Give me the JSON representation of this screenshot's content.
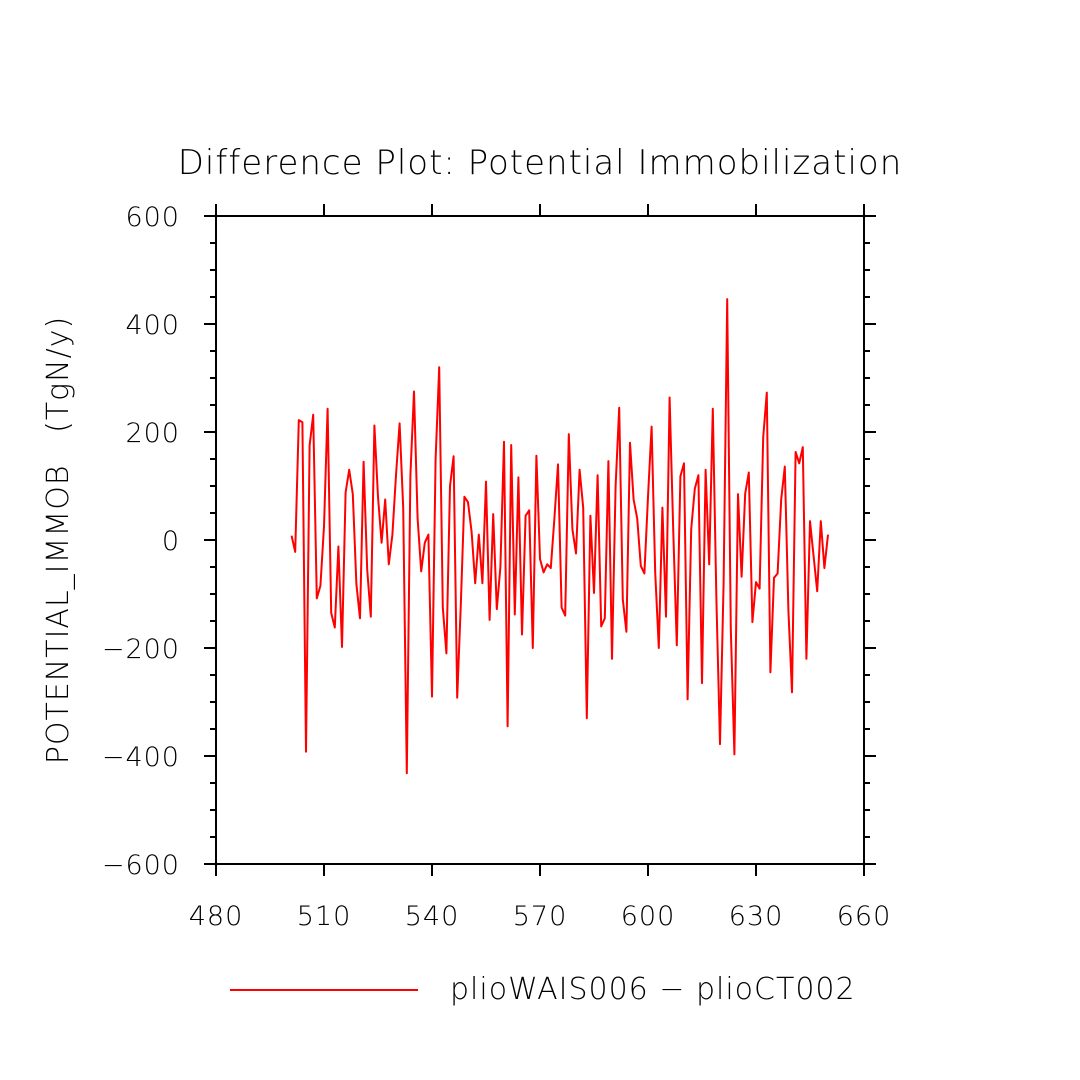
{
  "chart_data": {
    "type": "line",
    "title": "Difference Plot: Potential Immobilization",
    "xlabel": "",
    "ylabel": "POTENTIAL_IMMOB   (TgN/y)",
    "xlim": [
      480,
      660
    ],
    "ylim": [
      -600,
      600
    ],
    "x_ticks": [
      480,
      510,
      540,
      570,
      600,
      630,
      660
    ],
    "x_tick_labels": [
      "480",
      "510",
      "540",
      "570",
      "600",
      "630",
      "660"
    ],
    "y_ticks": [
      -600,
      -400,
      -200,
      0,
      200,
      400,
      600
    ],
    "y_tick_labels": [
      "−600",
      "−400",
      "−200",
      "0",
      "200",
      "400",
      "600"
    ],
    "grid": false,
    "legend_position": "bottom-center",
    "series": [
      {
        "name": "plioWAIS006 − plioCT002",
        "color": "#ff0000",
        "x": [
          501,
          502,
          503,
          504,
          505,
          506,
          507,
          508,
          509,
          510,
          511,
          512,
          513,
          514,
          515,
          516,
          517,
          518,
          519,
          520,
          521,
          522,
          523,
          524,
          525,
          526,
          527,
          528,
          529,
          530,
          531,
          532,
          533,
          534,
          535,
          536,
          537,
          538,
          539,
          540,
          541,
          542,
          543,
          544,
          545,
          546,
          547,
          548,
          549,
          550,
          551,
          552,
          553,
          554,
          555,
          556,
          557,
          558,
          559,
          560,
          561,
          562,
          563,
          564,
          565,
          566,
          567,
          568,
          569,
          570,
          571,
          572,
          573,
          574,
          575,
          576,
          577,
          578,
          579,
          580,
          581,
          582,
          583,
          584,
          585,
          586,
          587,
          588,
          589,
          590,
          591,
          592,
          593,
          594,
          595,
          596,
          597,
          598,
          599,
          600,
          601,
          602,
          603,
          604,
          605,
          606,
          607,
          608,
          609,
          610,
          611,
          612,
          613,
          614,
          615,
          616,
          617,
          618,
          619,
          620,
          621,
          622,
          623,
          624,
          625,
          626,
          627,
          628,
          629,
          630,
          631,
          632,
          633,
          634,
          635,
          636,
          637,
          638,
          639,
          640,
          641,
          642,
          643,
          644,
          645,
          646,
          647,
          648,
          649,
          650
        ],
        "values": [
          8,
          -22,
          222,
          218,
          -392,
          175,
          232,
          -108,
          -85,
          25,
          243,
          -135,
          -162,
          -12,
          -198,
          88,
          130,
          85,
          -82,
          -145,
          145,
          -55,
          -142,
          212,
          80,
          -5,
          75,
          -45,
          10,
          120,
          216,
          60,
          -432,
          120,
          275,
          40,
          -58,
          -5,
          10,
          -290,
          150,
          320,
          -125,
          -210,
          100,
          155,
          -292,
          -120,
          80,
          70,
          15,
          -80,
          10,
          -80,
          108,
          -148,
          48,
          -128,
          -50,
          182,
          -345,
          176,
          -138,
          116,
          -175,
          45,
          55,
          -200,
          156,
          -35,
          -60,
          -45,
          -52,
          40,
          140,
          -125,
          -140,
          196,
          20,
          -25,
          130,
          60,
          -330,
          45,
          -98,
          120,
          -160,
          -145,
          146,
          -220,
          100,
          245,
          -110,
          -170,
          180,
          75,
          40,
          -48,
          -62,
          80,
          210,
          -60,
          -200,
          60,
          -142,
          264,
          20,
          -195,
          118,
          142,
          -295,
          20,
          95,
          120,
          -265,
          130,
          -45,
          243,
          -110,
          -378,
          -80,
          446,
          -165,
          -397,
          85,
          -68,
          86,
          125,
          -152,
          -78,
          -90,
          190,
          273,
          -245,
          -70,
          -62,
          75,
          136,
          -130,
          -282,
          163,
          142,
          172,
          -220,
          35,
          -30,
          -95,
          35,
          -52,
          10
        ]
      }
    ]
  }
}
